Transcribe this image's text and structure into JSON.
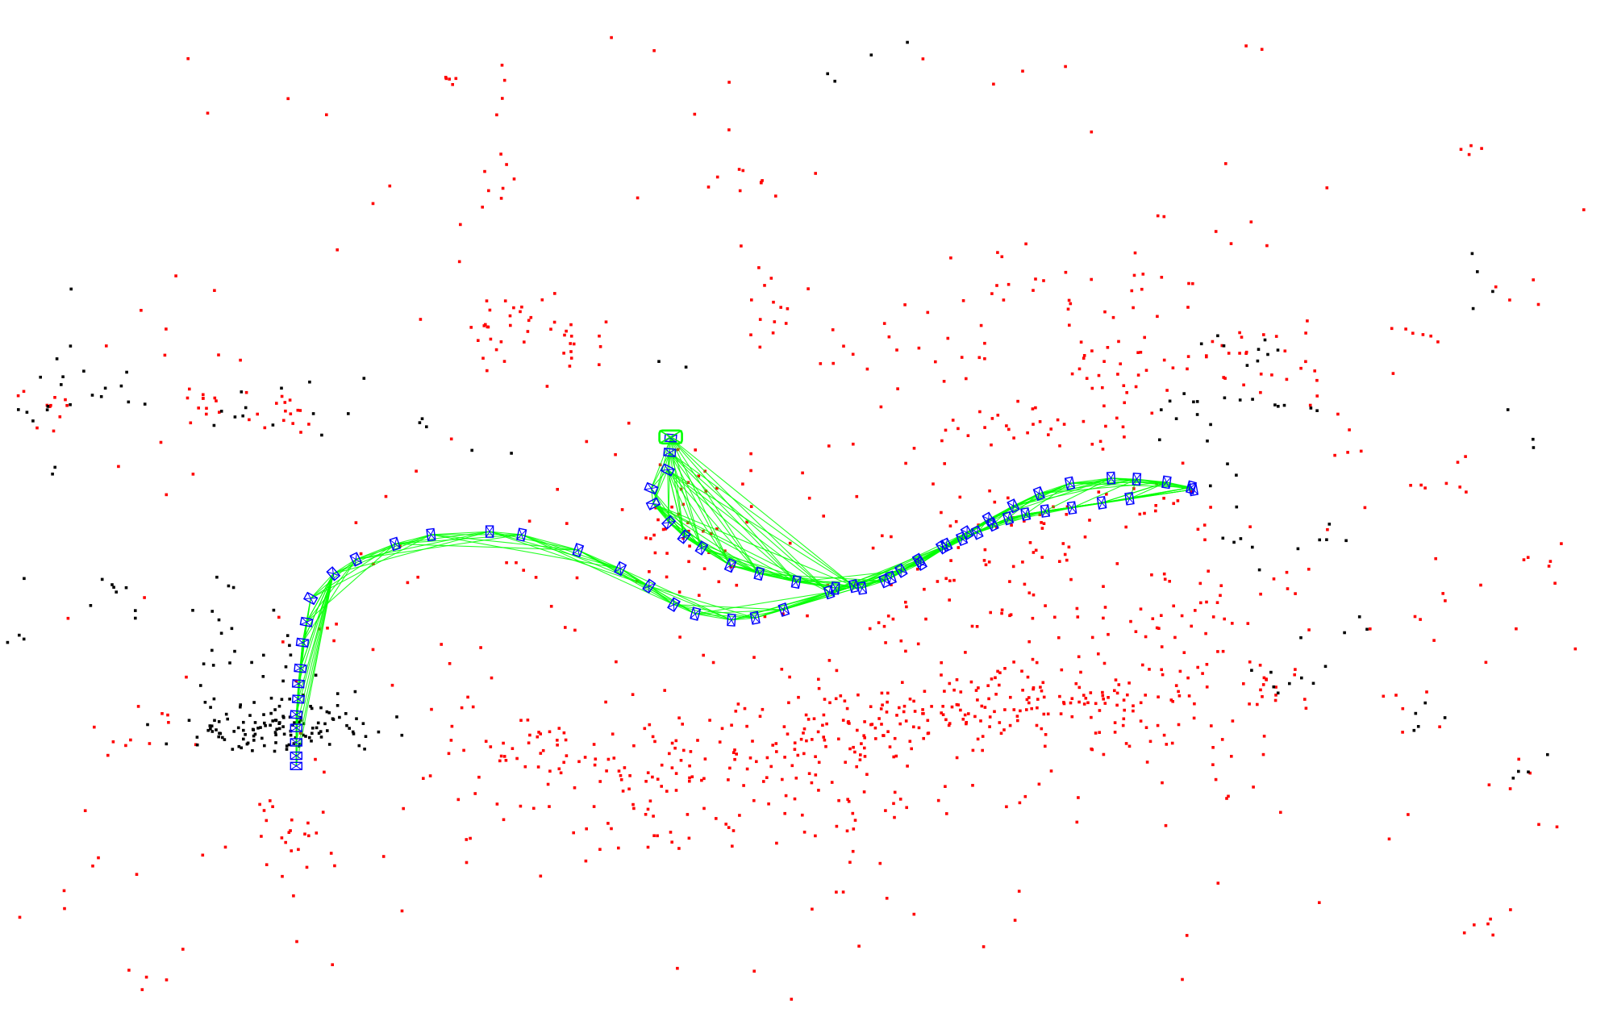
{
  "colors": {
    "background": "#ffffff",
    "map_points": "#ff0000",
    "reference_points": "#000000",
    "keyframes": "#0000ff",
    "covisibility_graph": "#00ff00",
    "current_camera": "#00ff00"
  }
}
